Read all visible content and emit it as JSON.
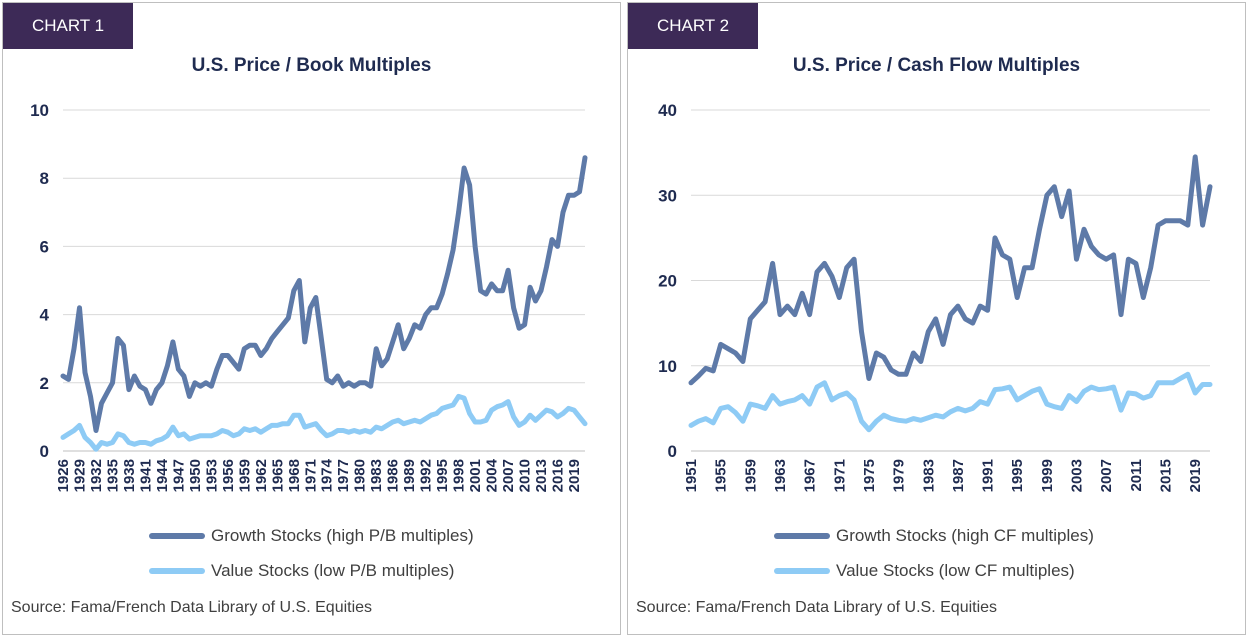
{
  "colors": {
    "growth": "#5e7aa8",
    "value": "#8ecbf5",
    "tag_bg": "#3d2a57",
    "grid": "#d9d9d9"
  },
  "chart_data": [
    {
      "id": "chart1",
      "type": "line",
      "tag": "CHART 1",
      "title": "U.S. Price / Book Multiples",
      "ylim": [
        0,
        10
      ],
      "yticks": [
        0,
        2,
        4,
        6,
        8,
        10
      ],
      "x_start": 1926,
      "x_end": 2021,
      "xtick_labels": [
        "1926",
        "1929",
        "1932",
        "1935",
        "1938",
        "1941",
        "1944",
        "1947",
        "1950",
        "1953",
        "1956",
        "1959",
        "1962",
        "1965",
        "1968",
        "1971",
        "1974",
        "1977",
        "1980",
        "1983",
        "1986",
        "1989",
        "1992",
        "1995",
        "1998",
        "2001",
        "2004",
        "2007",
        "2010",
        "2013",
        "2016",
        "2019"
      ],
      "series": [
        {
          "name": "Growth Stocks (high P/B multiples)",
          "color_key": "growth",
          "x": [
            1926,
            1927,
            1928,
            1929,
            1930,
            1931,
            1932,
            1933,
            1934,
            1935,
            1936,
            1937,
            1938,
            1939,
            1940,
            1941,
            1942,
            1943,
            1944,
            1945,
            1946,
            1947,
            1948,
            1949,
            1950,
            1951,
            1952,
            1953,
            1954,
            1955,
            1956,
            1957,
            1958,
            1959,
            1960,
            1961,
            1962,
            1963,
            1964,
            1965,
            1966,
            1967,
            1968,
            1969,
            1970,
            1971,
            1972,
            1973,
            1974,
            1975,
            1976,
            1977,
            1978,
            1979,
            1980,
            1981,
            1982,
            1983,
            1984,
            1985,
            1986,
            1987,
            1988,
            1989,
            1990,
            1991,
            1992,
            1993,
            1994,
            1995,
            1996,
            1997,
            1998,
            1999,
            2000,
            2001,
            2002,
            2003,
            2004,
            2005,
            2006,
            2007,
            2008,
            2009,
            2010,
            2011,
            2012,
            2013,
            2014,
            2015,
            2016,
            2017,
            2018,
            2019,
            2020,
            2021
          ],
          "values": [
            2.2,
            2.1,
            3.0,
            4.2,
            2.3,
            1.6,
            0.6,
            1.4,
            1.7,
            2.0,
            3.3,
            3.1,
            1.8,
            2.2,
            1.9,
            1.8,
            1.4,
            1.8,
            2.0,
            2.5,
            3.2,
            2.4,
            2.2,
            1.6,
            2.0,
            1.9,
            2.0,
            1.9,
            2.4,
            2.8,
            2.8,
            2.6,
            2.4,
            3.0,
            3.1,
            3.1,
            2.8,
            3.0,
            3.3,
            3.5,
            3.7,
            3.9,
            4.7,
            5.0,
            3.2,
            4.2,
            4.5,
            3.3,
            2.1,
            2.0,
            2.2,
            1.9,
            2.0,
            1.9,
            2.0,
            2.0,
            1.9,
            3.0,
            2.5,
            2.7,
            3.2,
            3.7,
            3.0,
            3.3,
            3.7,
            3.6,
            4.0,
            4.2,
            4.2,
            4.6,
            5.2,
            5.9,
            7.0,
            8.3,
            7.8,
            6.0,
            4.7,
            4.6,
            4.9,
            4.7,
            4.7,
            5.3,
            4.2,
            3.6,
            3.7,
            4.8,
            4.4,
            4.7,
            5.4,
            6.2,
            6.0,
            7.0,
            7.5,
            7.5,
            7.6,
            8.6
          ]
        },
        {
          "name": "Value Stocks (low P/B multiples)",
          "color_key": "value",
          "x": [
            1926,
            1927,
            1928,
            1929,
            1930,
            1931,
            1932,
            1933,
            1934,
            1935,
            1936,
            1937,
            1938,
            1939,
            1940,
            1941,
            1942,
            1943,
            1944,
            1945,
            1946,
            1947,
            1948,
            1949,
            1950,
            1951,
            1952,
            1953,
            1954,
            1955,
            1956,
            1957,
            1958,
            1959,
            1960,
            1961,
            1962,
            1963,
            1964,
            1965,
            1966,
            1967,
            1968,
            1969,
            1970,
            1971,
            1972,
            1973,
            1974,
            1975,
            1976,
            1977,
            1978,
            1979,
            1980,
            1981,
            1982,
            1983,
            1984,
            1985,
            1986,
            1987,
            1988,
            1989,
            1990,
            1991,
            1992,
            1993,
            1994,
            1995,
            1996,
            1997,
            1998,
            1999,
            2000,
            2001,
            2002,
            2003,
            2004,
            2005,
            2006,
            2007,
            2008,
            2009,
            2010,
            2011,
            2012,
            2013,
            2014,
            2015,
            2016,
            2017,
            2018,
            2019,
            2020,
            2021
          ],
          "values": [
            0.4,
            0.5,
            0.6,
            0.75,
            0.4,
            0.25,
            0.05,
            0.25,
            0.2,
            0.25,
            0.5,
            0.45,
            0.25,
            0.2,
            0.25,
            0.25,
            0.2,
            0.3,
            0.35,
            0.45,
            0.7,
            0.45,
            0.5,
            0.35,
            0.4,
            0.45,
            0.45,
            0.45,
            0.5,
            0.6,
            0.55,
            0.45,
            0.5,
            0.65,
            0.6,
            0.65,
            0.55,
            0.65,
            0.75,
            0.75,
            0.8,
            0.8,
            1.05,
            1.05,
            0.7,
            0.75,
            0.8,
            0.6,
            0.45,
            0.5,
            0.6,
            0.6,
            0.55,
            0.6,
            0.55,
            0.6,
            0.55,
            0.7,
            0.65,
            0.75,
            0.85,
            0.9,
            0.8,
            0.85,
            0.9,
            0.85,
            0.95,
            1.05,
            1.1,
            1.25,
            1.3,
            1.35,
            1.6,
            1.55,
            1.1,
            0.85,
            0.85,
            0.9,
            1.2,
            1.3,
            1.35,
            1.45,
            1.0,
            0.75,
            0.85,
            1.05,
            0.9,
            1.05,
            1.2,
            1.15,
            1.0,
            1.1,
            1.25,
            1.2,
            1.0,
            0.8
          ]
        }
      ]
    },
    {
      "id": "chart2",
      "type": "line",
      "tag": "CHART 2",
      "title": "U.S. Price / Cash Flow Multiples",
      "ylim": [
        0,
        40
      ],
      "yticks": [
        0,
        10,
        20,
        30,
        40
      ],
      "x_start": 1951,
      "x_end": 2021,
      "xtick_labels": [
        "1951",
        "1955",
        "1959",
        "1963",
        "1967",
        "1971",
        "1975",
        "1979",
        "1983",
        "1987",
        "1991",
        "1995",
        "1999",
        "2003",
        "2007",
        "2011",
        "2015",
        "2019"
      ],
      "series": [
        {
          "name": "Growth Stocks (high CF multiples)",
          "color_key": "growth",
          "x": [
            1951,
            1952,
            1953,
            1954,
            1955,
            1956,
            1957,
            1958,
            1959,
            1960,
            1961,
            1962,
            1963,
            1964,
            1965,
            1966,
            1967,
            1968,
            1969,
            1970,
            1971,
            1972,
            1973,
            1974,
            1975,
            1976,
            1977,
            1978,
            1979,
            1980,
            1981,
            1982,
            1983,
            1984,
            1985,
            1986,
            1987,
            1988,
            1989,
            1990,
            1991,
            1992,
            1993,
            1994,
            1995,
            1996,
            1997,
            1998,
            1999,
            2000,
            2001,
            2002,
            2003,
            2004,
            2005,
            2006,
            2007,
            2008,
            2009,
            2010,
            2011,
            2012,
            2013,
            2014,
            2015,
            2016,
            2017,
            2018,
            2019,
            2020,
            2021
          ],
          "values": [
            8.0,
            8.8,
            9.7,
            9.4,
            12.5,
            12.0,
            11.5,
            10.5,
            15.5,
            16.5,
            17.5,
            22.0,
            16.0,
            17.0,
            16.0,
            18.5,
            16.0,
            21.0,
            22.0,
            20.5,
            18.0,
            21.5,
            22.5,
            14.0,
            8.5,
            11.5,
            11.0,
            9.5,
            9.0,
            9.0,
            11.5,
            10.5,
            14.0,
            15.5,
            12.5,
            16.0,
            17.0,
            15.5,
            15.0,
            17.0,
            16.5,
            25.0,
            23.0,
            22.5,
            18.0,
            21.5,
            21.5,
            26.0,
            30.0,
            31.0,
            27.5,
            30.5,
            22.5,
            26.0,
            24.0,
            23.0,
            22.5,
            23.0,
            16.0,
            22.5,
            22.0,
            18.0,
            21.5,
            26.5,
            27.0,
            27.0,
            27.0,
            26.5,
            34.5,
            26.5,
            31.0
          ]
        },
        {
          "name": "Value Stocks (low CF multiples)",
          "color_key": "value",
          "x": [
            1951,
            1952,
            1953,
            1954,
            1955,
            1956,
            1957,
            1958,
            1959,
            1960,
            1961,
            1962,
            1963,
            1964,
            1965,
            1966,
            1967,
            1968,
            1969,
            1970,
            1971,
            1972,
            1973,
            1974,
            1975,
            1976,
            1977,
            1978,
            1979,
            1980,
            1981,
            1982,
            1983,
            1984,
            1985,
            1986,
            1987,
            1988,
            1989,
            1990,
            1991,
            1992,
            1993,
            1994,
            1995,
            1996,
            1997,
            1998,
            1999,
            2000,
            2001,
            2002,
            2003,
            2004,
            2005,
            2006,
            2007,
            2008,
            2009,
            2010,
            2011,
            2012,
            2013,
            2014,
            2015,
            2016,
            2017,
            2018,
            2019,
            2020,
            2021
          ],
          "values": [
            3.0,
            3.5,
            3.8,
            3.3,
            5.0,
            5.2,
            4.5,
            3.5,
            5.5,
            5.3,
            5.0,
            6.5,
            5.5,
            5.8,
            6.0,
            6.5,
            5.5,
            7.5,
            8.0,
            6.0,
            6.5,
            6.8,
            6.0,
            3.5,
            2.5,
            3.5,
            4.2,
            3.8,
            3.6,
            3.5,
            3.8,
            3.6,
            3.9,
            4.2,
            4.0,
            4.6,
            5.0,
            4.7,
            5.0,
            5.8,
            5.5,
            7.2,
            7.3,
            7.5,
            6.0,
            6.5,
            7.0,
            7.3,
            5.5,
            5.2,
            5.0,
            6.5,
            5.8,
            7.0,
            7.5,
            7.2,
            7.3,
            7.5,
            4.8,
            6.8,
            6.7,
            6.2,
            6.5,
            8.0,
            8.0,
            8.0,
            8.5,
            9.0,
            6.8,
            7.8,
            7.8
          ]
        }
      ]
    }
  ],
  "source_text": "Source: Fama/French Data Library of U.S. Equities"
}
